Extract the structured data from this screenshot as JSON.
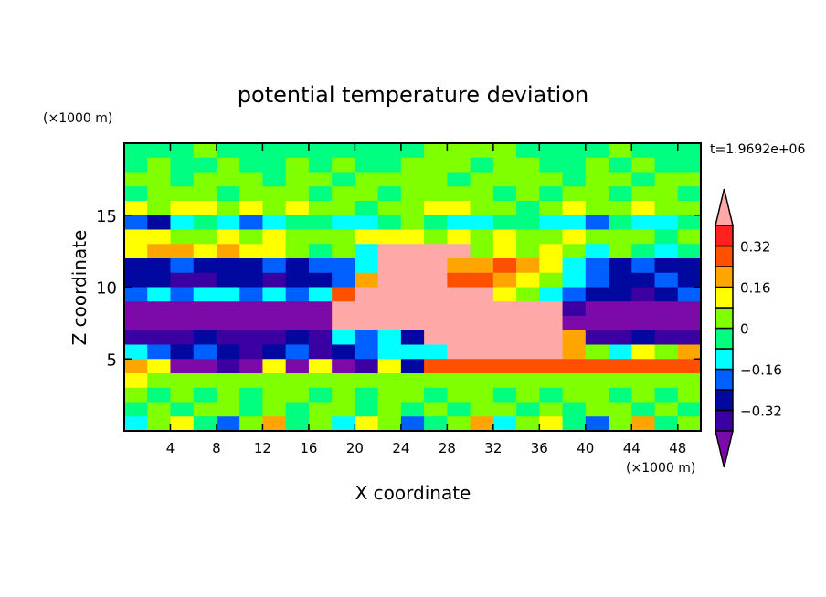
{
  "chart_data": {
    "type": "heatmap",
    "title": "potential temperature deviation",
    "xlabel": "X coordinate",
    "ylabel": "Z coordinate",
    "x_unit_label": "(×1000 m)",
    "y_unit_label": "(×1000 m)",
    "time_label": "t=1.9692e+06",
    "xlim": [
      0,
      50
    ],
    "ylim": [
      0,
      20
    ],
    "x_ticks": [
      4,
      8,
      12,
      16,
      20,
      24,
      28,
      32,
      36,
      40,
      44,
      48
    ],
    "y_ticks": [
      5,
      10,
      15
    ],
    "grid_x_centers": [
      1,
      3,
      5,
      7,
      9,
      11,
      13,
      15,
      17,
      19,
      21,
      23,
      25,
      27,
      29,
      31,
      33,
      35,
      37,
      39,
      41,
      43,
      45,
      47,
      49
    ],
    "grid_z_centers_top_down": [
      19.5,
      18.5,
      17.5,
      16.5,
      15.5,
      14.5,
      13.5,
      12.5,
      11.5,
      10.5,
      9.5,
      8.5,
      7.5,
      6.5,
      5.5,
      4.5,
      3.5,
      2.5,
      1.5,
      0.5
    ],
    "values": [
      [
        -0.04,
        -0.04,
        -0.04,
        0.04,
        -0.04,
        -0.04,
        -0.04,
        -0.04,
        -0.04,
        -0.04,
        -0.04,
        -0.04,
        -0.04,
        0.04,
        0.04,
        0.04,
        0.04,
        -0.04,
        -0.04,
        -0.04,
        -0.04,
        0.04,
        -0.04,
        -0.04,
        -0.04
      ],
      [
        -0.04,
        0.04,
        -0.04,
        -0.04,
        0.04,
        -0.04,
        -0.04,
        0.04,
        -0.04,
        0.04,
        -0.04,
        -0.04,
        0.04,
        0.04,
        0.04,
        -0.04,
        0.04,
        0.04,
        -0.04,
        -0.04,
        0.04,
        -0.04,
        0.04,
        -0.04,
        -0.04
      ],
      [
        0.04,
        0.04,
        -0.04,
        0.04,
        0.04,
        0.04,
        -0.04,
        0.04,
        0.04,
        -0.04,
        0.04,
        0.04,
        0.04,
        0.04,
        -0.04,
        0.04,
        0.04,
        0.04,
        0.04,
        -0.04,
        0.04,
        0.04,
        -0.04,
        0.04,
        0.04
      ],
      [
        -0.04,
        0.04,
        0.04,
        0.04,
        -0.04,
        0.04,
        0.04,
        0.04,
        -0.04,
        0.04,
        0.04,
        -0.04,
        0.04,
        0.04,
        0.04,
        0.04,
        -0.04,
        0.04,
        -0.04,
        0.04,
        0.04,
        -0.04,
        0.04,
        0.04,
        -0.04
      ],
      [
        0.12,
        0.04,
        0.12,
        0.12,
        0.04,
        0.12,
        0.04,
        0.12,
        0.04,
        0.04,
        -0.04,
        0.04,
        0.04,
        0.12,
        0.12,
        0.04,
        0.04,
        -0.04,
        0.04,
        0.12,
        0.04,
        0.04,
        0.12,
        0.04,
        0.04
      ],
      [
        -0.2,
        -0.28,
        -0.12,
        -0.04,
        -0.12,
        -0.2,
        -0.12,
        -0.04,
        -0.04,
        -0.12,
        -0.12,
        -0.04,
        0.04,
        -0.04,
        -0.12,
        -0.12,
        -0.04,
        -0.04,
        -0.12,
        -0.12,
        -0.2,
        -0.04,
        -0.12,
        -0.12,
        -0.04
      ],
      [
        0.12,
        0.12,
        0.04,
        0.04,
        0.12,
        0.04,
        0.12,
        0.04,
        0.04,
        0.04,
        0.12,
        0.12,
        0.12,
        0.04,
        0.12,
        0.04,
        0.12,
        0.04,
        0.04,
        0.12,
        0.04,
        0.04,
        0.04,
        -0.04,
        0.04
      ],
      [
        0.12,
        0.2,
        0.2,
        0.12,
        0.2,
        0.12,
        0.12,
        0.04,
        -0.04,
        0.04,
        -0.12,
        0.45,
        0.45,
        0.45,
        0.45,
        0.04,
        0.12,
        0.04,
        0.12,
        0.04,
        -0.12,
        0.04,
        -0.04,
        -0.12,
        -0.04
      ],
      [
        -0.28,
        -0.28,
        -0.2,
        -0.28,
        -0.28,
        -0.28,
        -0.2,
        -0.28,
        -0.2,
        -0.2,
        -0.12,
        0.45,
        0.45,
        0.45,
        0.2,
        0.2,
        0.28,
        0.2,
        0.12,
        -0.12,
        -0.2,
        -0.28,
        -0.2,
        -0.28,
        -0.28
      ],
      [
        -0.28,
        -0.28,
        -0.36,
        -0.36,
        -0.28,
        -0.28,
        -0.36,
        -0.28,
        -0.28,
        -0.2,
        0.2,
        0.45,
        0.45,
        0.45,
        0.28,
        0.28,
        0.2,
        0.12,
        0.04,
        -0.12,
        -0.2,
        -0.28,
        -0.28,
        -0.2,
        -0.28
      ],
      [
        -0.2,
        -0.12,
        -0.2,
        -0.12,
        -0.12,
        -0.2,
        -0.12,
        -0.2,
        -0.12,
        0.28,
        0.45,
        0.45,
        0.45,
        0.45,
        0.45,
        0.45,
        0.12,
        0.04,
        -0.12,
        -0.2,
        -0.28,
        -0.28,
        -0.36,
        -0.28,
        -0.2
      ],
      [
        -0.45,
        -0.45,
        -0.45,
        -0.45,
        -0.45,
        -0.45,
        -0.45,
        -0.45,
        -0.45,
        0.45,
        0.45,
        0.45,
        0.45,
        0.45,
        0.45,
        0.45,
        0.45,
        0.45,
        0.45,
        -0.36,
        -0.45,
        -0.45,
        -0.45,
        -0.45,
        -0.45
      ],
      [
        -0.45,
        -0.45,
        -0.45,
        -0.45,
        -0.45,
        -0.45,
        -0.45,
        -0.45,
        -0.45,
        0.45,
        0.45,
        0.45,
        0.45,
        0.45,
        0.45,
        0.45,
        0.45,
        0.45,
        0.45,
        -0.45,
        -0.45,
        -0.45,
        -0.45,
        -0.45,
        -0.45
      ],
      [
        -0.36,
        -0.36,
        -0.36,
        -0.28,
        -0.36,
        -0.36,
        -0.36,
        -0.28,
        -0.36,
        -0.12,
        -0.2,
        -0.12,
        -0.28,
        0.45,
        0.45,
        0.45,
        0.45,
        0.45,
        0.45,
        0.2,
        -0.36,
        -0.36,
        -0.28,
        -0.36,
        -0.36
      ],
      [
        -0.12,
        -0.2,
        -0.28,
        -0.2,
        -0.28,
        -0.36,
        -0.28,
        -0.2,
        -0.36,
        -0.28,
        -0.2,
        -0.12,
        -0.12,
        -0.12,
        0.45,
        0.45,
        0.45,
        0.45,
        0.45,
        0.2,
        0.04,
        -0.12,
        0.12,
        0.04,
        0.2
      ],
      [
        0.2,
        0.12,
        -0.45,
        -0.45,
        -0.36,
        -0.45,
        0.12,
        -0.45,
        0.12,
        -0.45,
        -0.36,
        0.12,
        -0.28,
        0.28,
        0.28,
        0.28,
        0.28,
        0.28,
        0.28,
        0.28,
        0.28,
        0.28,
        0.28,
        0.28,
        0.28
      ],
      [
        0.12,
        0.04,
        0.04,
        0.04,
        0.04,
        0.04,
        0.04,
        0.04,
        0.04,
        0.04,
        0.04,
        0.04,
        0.04,
        0.04,
        0.04,
        0.04,
        0.04,
        0.04,
        0.04,
        0.04,
        0.04,
        0.04,
        0.04,
        0.04,
        0.04
      ],
      [
        0.04,
        -0.04,
        0.04,
        -0.04,
        0.04,
        -0.04,
        0.04,
        0.04,
        -0.04,
        0.04,
        -0.04,
        0.04,
        0.04,
        -0.04,
        0.04,
        0.04,
        -0.04,
        0.04,
        -0.04,
        0.04,
        0.04,
        -0.04,
        0.04,
        -0.04,
        0.04
      ],
      [
        -0.04,
        0.04,
        -0.04,
        0.04,
        0.04,
        -0.04,
        0.04,
        -0.04,
        0.04,
        0.04,
        -0.04,
        0.04,
        -0.04,
        0.04,
        -0.04,
        0.04,
        0.04,
        -0.04,
        0.04,
        -0.04,
        0.04,
        0.04,
        -0.04,
        0.04,
        -0.04
      ],
      [
        -0.12,
        0.04,
        0.12,
        -0.04,
        -0.2,
        0.04,
        0.2,
        -0.04,
        0.04,
        -0.12,
        0.12,
        0.04,
        -0.2,
        -0.04,
        0.04,
        0.2,
        -0.12,
        0.04,
        0.12,
        -0.04,
        -0.2,
        0.04,
        0.2,
        -0.04,
        0.04
      ]
    ],
    "colorbar": {
      "levels": [
        -0.4,
        -0.32,
        -0.24,
        -0.16,
        -0.08,
        0,
        0.08,
        0.16,
        0.24,
        0.32,
        0.4
      ],
      "tick_labels": [
        "0.32",
        "0.16",
        "0",
        "−0.16",
        "−0.32"
      ],
      "tick_values": [
        0.32,
        0.16,
        0,
        -0.16,
        -0.32
      ],
      "colors": [
        "#7c0aa8",
        "#3a00a2",
        "#0008a0",
        "#0060ff",
        "#00ffff",
        "#00ff80",
        "#80ff00",
        "#ffff00",
        "#ffa500",
        "#ff5000",
        "#ff2020",
        "#ffa8a8"
      ]
    }
  }
}
